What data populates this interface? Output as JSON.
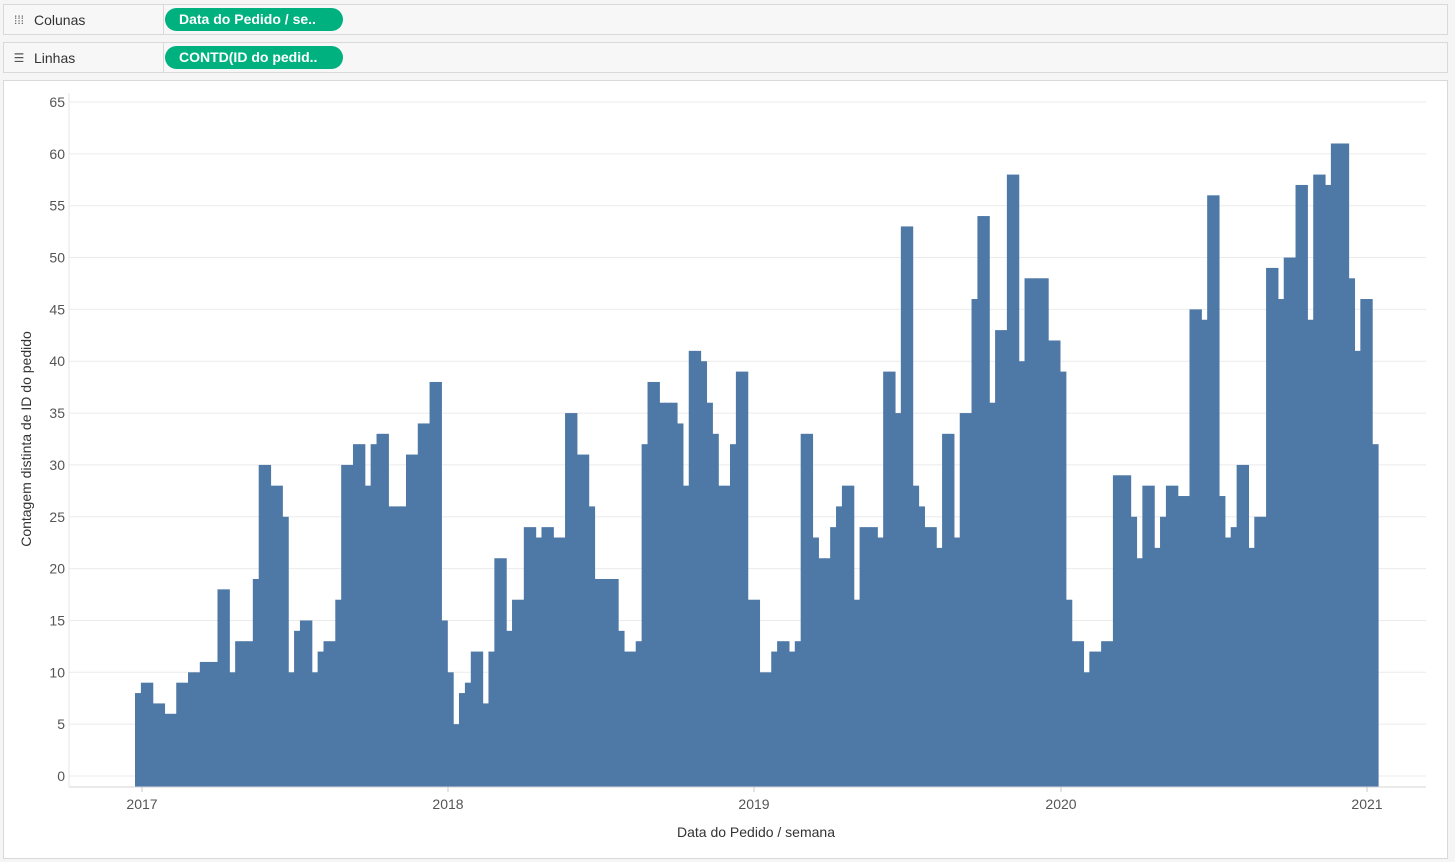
{
  "shelves": {
    "columns": {
      "label": "Colunas",
      "icon": "columns-icon",
      "pill": "Data do Pedido / se.."
    },
    "rows": {
      "label": "Linhas",
      "icon": "rows-icon",
      "pill": "CONTD(ID do pedid.."
    }
  },
  "colors": {
    "pill": "#00b180",
    "bar": "#4e79a7",
    "grid": "#ebebeb"
  },
  "chart_data": {
    "type": "bar",
    "xlabel": "Data do Pedido / semana",
    "ylabel": "Contagem distinta de ID do pedido",
    "ylim": [
      0,
      65
    ],
    "yticks": [
      0,
      5,
      10,
      15,
      20,
      25,
      30,
      35,
      40,
      45,
      50,
      55,
      60,
      65
    ],
    "xticks": [
      "2017",
      "2018",
      "2019",
      "2020",
      "2021"
    ],
    "grid": true,
    "x_start": "2017-01-01",
    "week_spacing_days": 7,
    "values": [
      8,
      9,
      9,
      7,
      7,
      6,
      6,
      9,
      9,
      10,
      10,
      11,
      11,
      11,
      18,
      18,
      10,
      13,
      13,
      13,
      19,
      30,
      30,
      28,
      28,
      25,
      10,
      14,
      15,
      15,
      10,
      12,
      13,
      13,
      17,
      30,
      30,
      32,
      32,
      28,
      32,
      33,
      33,
      26,
      26,
      26,
      31,
      31,
      34,
      34,
      38,
      38,
      15,
      10,
      5,
      8,
      9,
      12,
      12,
      7,
      12,
      21,
      21,
      14,
      17,
      17,
      24,
      24,
      23,
      24,
      24,
      23,
      23,
      35,
      35,
      31,
      31,
      26,
      19,
      19,
      19,
      19,
      14,
      12,
      12,
      13,
      32,
      38,
      38,
      36,
      36,
      36,
      34,
      28,
      41,
      41,
      40,
      36,
      33,
      28,
      28,
      32,
      39,
      39,
      17,
      17,
      10,
      10,
      12,
      13,
      13,
      12,
      13,
      33,
      33,
      23,
      21,
      21,
      24,
      26,
      28,
      28,
      17,
      24,
      24,
      24,
      23,
      39,
      39,
      35,
      53,
      53,
      28,
      26,
      24,
      24,
      22,
      33,
      33,
      23,
      35,
      35,
      46,
      54,
      54,
      36,
      43,
      43,
      58,
      58,
      40,
      48,
      48,
      48,
      48,
      42,
      42,
      39,
      17,
      13,
      13,
      10,
      12,
      12,
      13,
      13,
      29,
      29,
      29,
      25,
      21,
      28,
      28,
      22,
      25,
      28,
      28,
      27,
      27,
      45,
      45,
      44,
      56,
      56,
      27,
      23,
      24,
      30,
      30,
      22,
      25,
      25,
      49,
      49,
      46,
      50,
      50,
      57,
      57,
      44,
      58,
      58,
      57,
      61,
      61,
      61,
      48,
      41,
      46,
      46,
      32
    ]
  }
}
